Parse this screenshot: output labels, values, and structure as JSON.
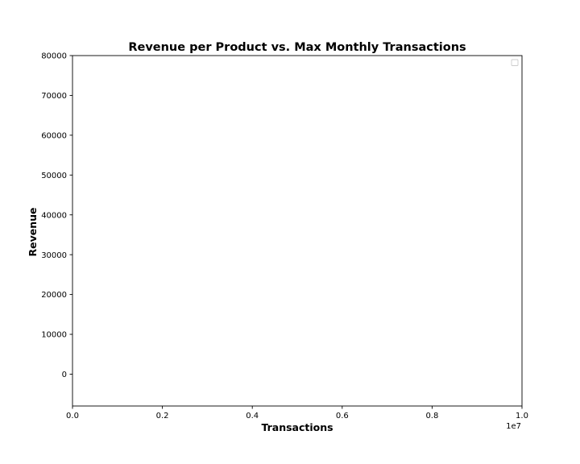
{
  "chart_data": {
    "type": "scatter",
    "title": "Revenue per Product vs. Max Monthly Transactions",
    "xlabel": "Transactions",
    "ylabel": "Revenue",
    "x_offset_label": "1e7",
    "xlim": [
      0.0,
      1.0
    ],
    "ylim": [
      -8000,
      80000
    ],
    "x_ticks": [
      0.0,
      0.2,
      0.4,
      0.6,
      0.8,
      1.0
    ],
    "x_tick_labels": [
      "0.0",
      "0.2",
      "0.4",
      "0.6",
      "0.8",
      "1.0"
    ],
    "y_ticks": [
      0,
      10000,
      20000,
      30000,
      40000,
      50000,
      60000,
      70000,
      80000
    ],
    "y_tick_labels": [
      "0",
      "10000",
      "20000",
      "30000",
      "40000",
      "50000",
      "60000",
      "70000",
      "80000"
    ],
    "series": [],
    "grid": false,
    "legend": "top-right",
    "legend_entries": []
  }
}
